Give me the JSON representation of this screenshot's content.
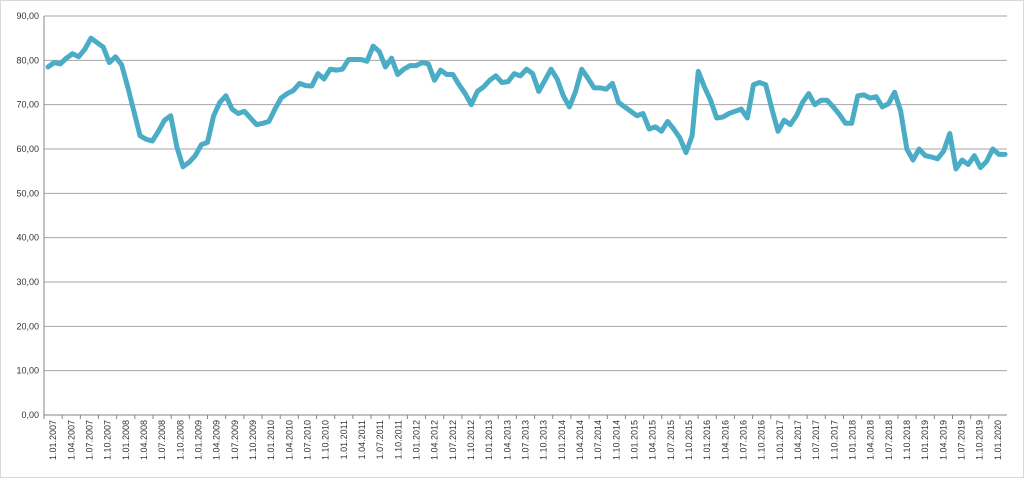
{
  "chart_data": {
    "type": "line",
    "title": "",
    "xlabel": "",
    "ylabel": "",
    "ylim": [
      0,
      90
    ],
    "y_ticks": [
      "0,00",
      "10,00",
      "20,00",
      "30,00",
      "40,00",
      "50,00",
      "60,00",
      "70,00",
      "80,00",
      "90,00"
    ],
    "x_tick_labels": [
      "1.01.2007",
      "1.04.2007",
      "1.07.2007",
      "1.10.2007",
      "1.01.2008",
      "1.04.2008",
      "1.07.2008",
      "1.10.2008",
      "1.01.2009",
      "1.04.2009",
      "1.07.2009",
      "1.10.2009",
      "1.01.2010",
      "1.04.2010",
      "1.07.2010",
      "1.10.2010",
      "1.01.2011",
      "1.04.2011",
      "1.07.2011",
      "1.10.2011",
      "1.01.2012",
      "1.04.2012",
      "1.07.2012",
      "1.10.2012",
      "1.01.2013",
      "1.04.2013",
      "1.07.2013",
      "1.10.2013",
      "1.01.2014",
      "1.04.2014",
      "1.07.2014",
      "1.10.2014",
      "1.01.2015",
      "1.04.2015",
      "1.07.2015",
      "1.10.2015",
      "1.01.2016",
      "1.04.2016",
      "1.07.2016",
      "1.10.2016",
      "1.01.2017",
      "1.04.2017",
      "1.07.2017",
      "1.10.2017",
      "1.01.2018",
      "1.04.2018",
      "1.07.2018",
      "1.10.2018",
      "1.01.2019",
      "1.04.2019",
      "1.07.2019",
      "1.10.2019",
      "1.01.2020"
    ],
    "grid": "horizontal",
    "legend": "none",
    "line_color": "#4bacc6",
    "series": [
      {
        "values": [
          78.5,
          79.5,
          79.2,
          80.5,
          81.5,
          80.8,
          82.5,
          85.0,
          84.0,
          83.0,
          79.5,
          80.8,
          79.0,
          74.0,
          68.5,
          63.0,
          62.2,
          61.8,
          64.0,
          66.5,
          67.5,
          60.5,
          56.0,
          57.0,
          58.5,
          61.0,
          61.5,
          67.5,
          70.5,
          72.0,
          69.0,
          68.0,
          68.5,
          67.0,
          65.5,
          65.8,
          66.2,
          69.0,
          71.5,
          72.5,
          73.2,
          74.8,
          74.3,
          74.2,
          77.0,
          75.8,
          78.0,
          77.8,
          78.0,
          80.2,
          80.2,
          80.2,
          79.8,
          83.2,
          82.0,
          78.5,
          80.5,
          76.8,
          78.0,
          78.8,
          78.8,
          79.5,
          79.2,
          75.5,
          77.8,
          76.8,
          76.8,
          74.5,
          72.5,
          70.0,
          73.0,
          74.0,
          75.5,
          76.5,
          75.0,
          75.2,
          77.0,
          76.5,
          78.0,
          77.0,
          73.0,
          75.5,
          78.0,
          75.8,
          72.0,
          69.5,
          73.0,
          78.0,
          76.0,
          73.8,
          73.8,
          73.5,
          74.8,
          70.5,
          69.5,
          68.5,
          67.5,
          68.0,
          64.5,
          65.0,
          64.0,
          66.2,
          64.5,
          62.5,
          59.2,
          63.0,
          77.5,
          74.0,
          71.0,
          67.0,
          67.2,
          68.0,
          68.5,
          69.0,
          67.0,
          74.5,
          75.0,
          74.5,
          69.0,
          64.0,
          66.5,
          65.5,
          67.5,
          70.5,
          72.5,
          70.0,
          71.0,
          71.0,
          69.5,
          67.8,
          65.8,
          65.8,
          72.0,
          72.2,
          71.5,
          71.8,
          69.5,
          70.2,
          72.8,
          68.5,
          60.0,
          57.5,
          60.0,
          58.5,
          58.2,
          57.8,
          59.5,
          63.5,
          55.5,
          57.5,
          56.5,
          58.5,
          55.8,
          57.2,
          60.0,
          58.8,
          58.8
        ]
      }
    ]
  }
}
